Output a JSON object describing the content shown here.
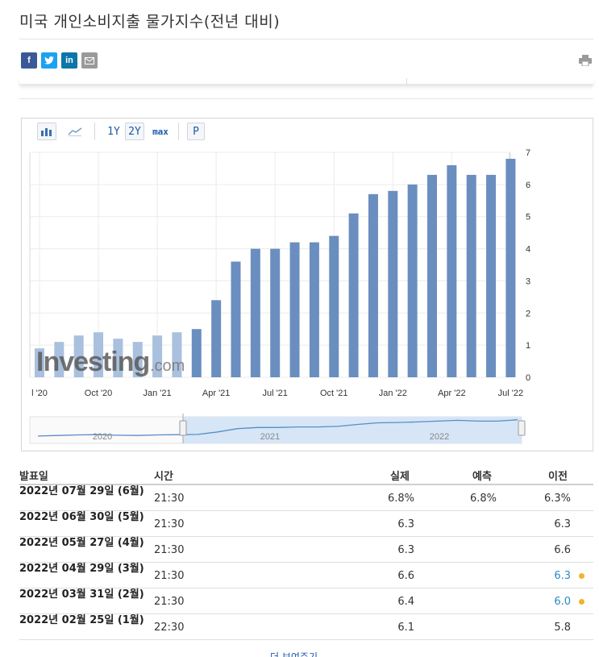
{
  "page": {
    "title": "미국 개인소비지출 물가지수(전년 대비)"
  },
  "share": [
    {
      "name": "facebook-icon",
      "label": "f",
      "color": "#3b5998"
    },
    {
      "name": "twitter-icon",
      "label": "t",
      "color": "#1da1f2"
    },
    {
      "name": "linkedin-icon",
      "label": "in",
      "color": "#0e76a8"
    },
    {
      "name": "email-icon",
      "label": "✉",
      "color": "#9a9a9a"
    }
  ],
  "toolbar": {
    "btn_1y": "1Y",
    "btn_2y": "2Y",
    "btn_max": "max",
    "btn_p": "P"
  },
  "chart_data": {
    "type": "bar",
    "categories": [
      "2020-07",
      "2020-08",
      "2020-09",
      "2020-10",
      "2020-11",
      "2020-12",
      "2021-01",
      "2021-02",
      "2021-03",
      "2021-04",
      "2021-05",
      "2021-06",
      "2021-07",
      "2021-08",
      "2021-09",
      "2021-10",
      "2021-11",
      "2021-12",
      "2022-01",
      "2022-02",
      "2022-03",
      "2022-04",
      "2022-05",
      "2022-06",
      "2022-07"
    ],
    "values": [
      0.9,
      1.1,
      1.3,
      1.4,
      1.2,
      1.1,
      1.3,
      1.4,
      1.5,
      2.4,
      3.6,
      4.0,
      4.0,
      4.2,
      4.2,
      4.4,
      5.1,
      5.7,
      5.8,
      6.0,
      6.3,
      6.6,
      6.3,
      6.3,
      6.8
    ],
    "ylim": [
      0,
      7
    ],
    "y_ticks": [
      0,
      1,
      2,
      3,
      4,
      5,
      6,
      7
    ],
    "x_tick_labels": [
      {
        "index": 0,
        "label": "l '20"
      },
      {
        "index": 3,
        "label": "Oct '20"
      },
      {
        "index": 6,
        "label": "Jan '21"
      },
      {
        "index": 9,
        "label": "Apr '21"
      },
      {
        "index": 12,
        "label": "Jul '21"
      },
      {
        "index": 15,
        "label": "Oct '21"
      },
      {
        "index": 18,
        "label": "Jan '22"
      },
      {
        "index": 21,
        "label": "Apr '22"
      },
      {
        "index": 24,
        "label": "Jul '22"
      }
    ],
    "navigator_labels": [
      "2020",
      "2021",
      "2022"
    ],
    "bar_color": "#6a8ebf",
    "bar_color_faded": "#a9c0de",
    "watermark": {
      "main": "Investing",
      "suffix": ".com"
    },
    "grid": true
  },
  "table": {
    "headers": {
      "date": "발표일",
      "time": "시간",
      "actual": "실제",
      "forecast": "예측",
      "previous": "이전"
    },
    "rows": [
      {
        "date": "2022년 07월 29일 (6월)",
        "time": "21:30",
        "actual": "6.8%",
        "forecast": "6.8%",
        "previous": "6.3%",
        "revised": false
      },
      {
        "date": "2022년 06월 30일 (5월)",
        "time": "21:30",
        "actual": "6.3",
        "forecast": "",
        "previous": "6.3",
        "revised": false
      },
      {
        "date": "2022년 05월 27일 (4월)",
        "time": "21:30",
        "actual": "6.3",
        "forecast": "",
        "previous": "6.6",
        "revised": false
      },
      {
        "date": "2022년 04월 29일 (3월)",
        "time": "21:30",
        "actual": "6.6",
        "forecast": "",
        "previous": "6.3",
        "revised": true
      },
      {
        "date": "2022년 03월 31일 (2월)",
        "time": "21:30",
        "actual": "6.4",
        "forecast": "",
        "previous": "6.0",
        "revised": true
      },
      {
        "date": "2022년 02월 25일 (1월)",
        "time": "22:30",
        "actual": "6.1",
        "forecast": "",
        "previous": "5.8",
        "revised": false
      }
    ]
  },
  "more_link": "더 보여주기"
}
